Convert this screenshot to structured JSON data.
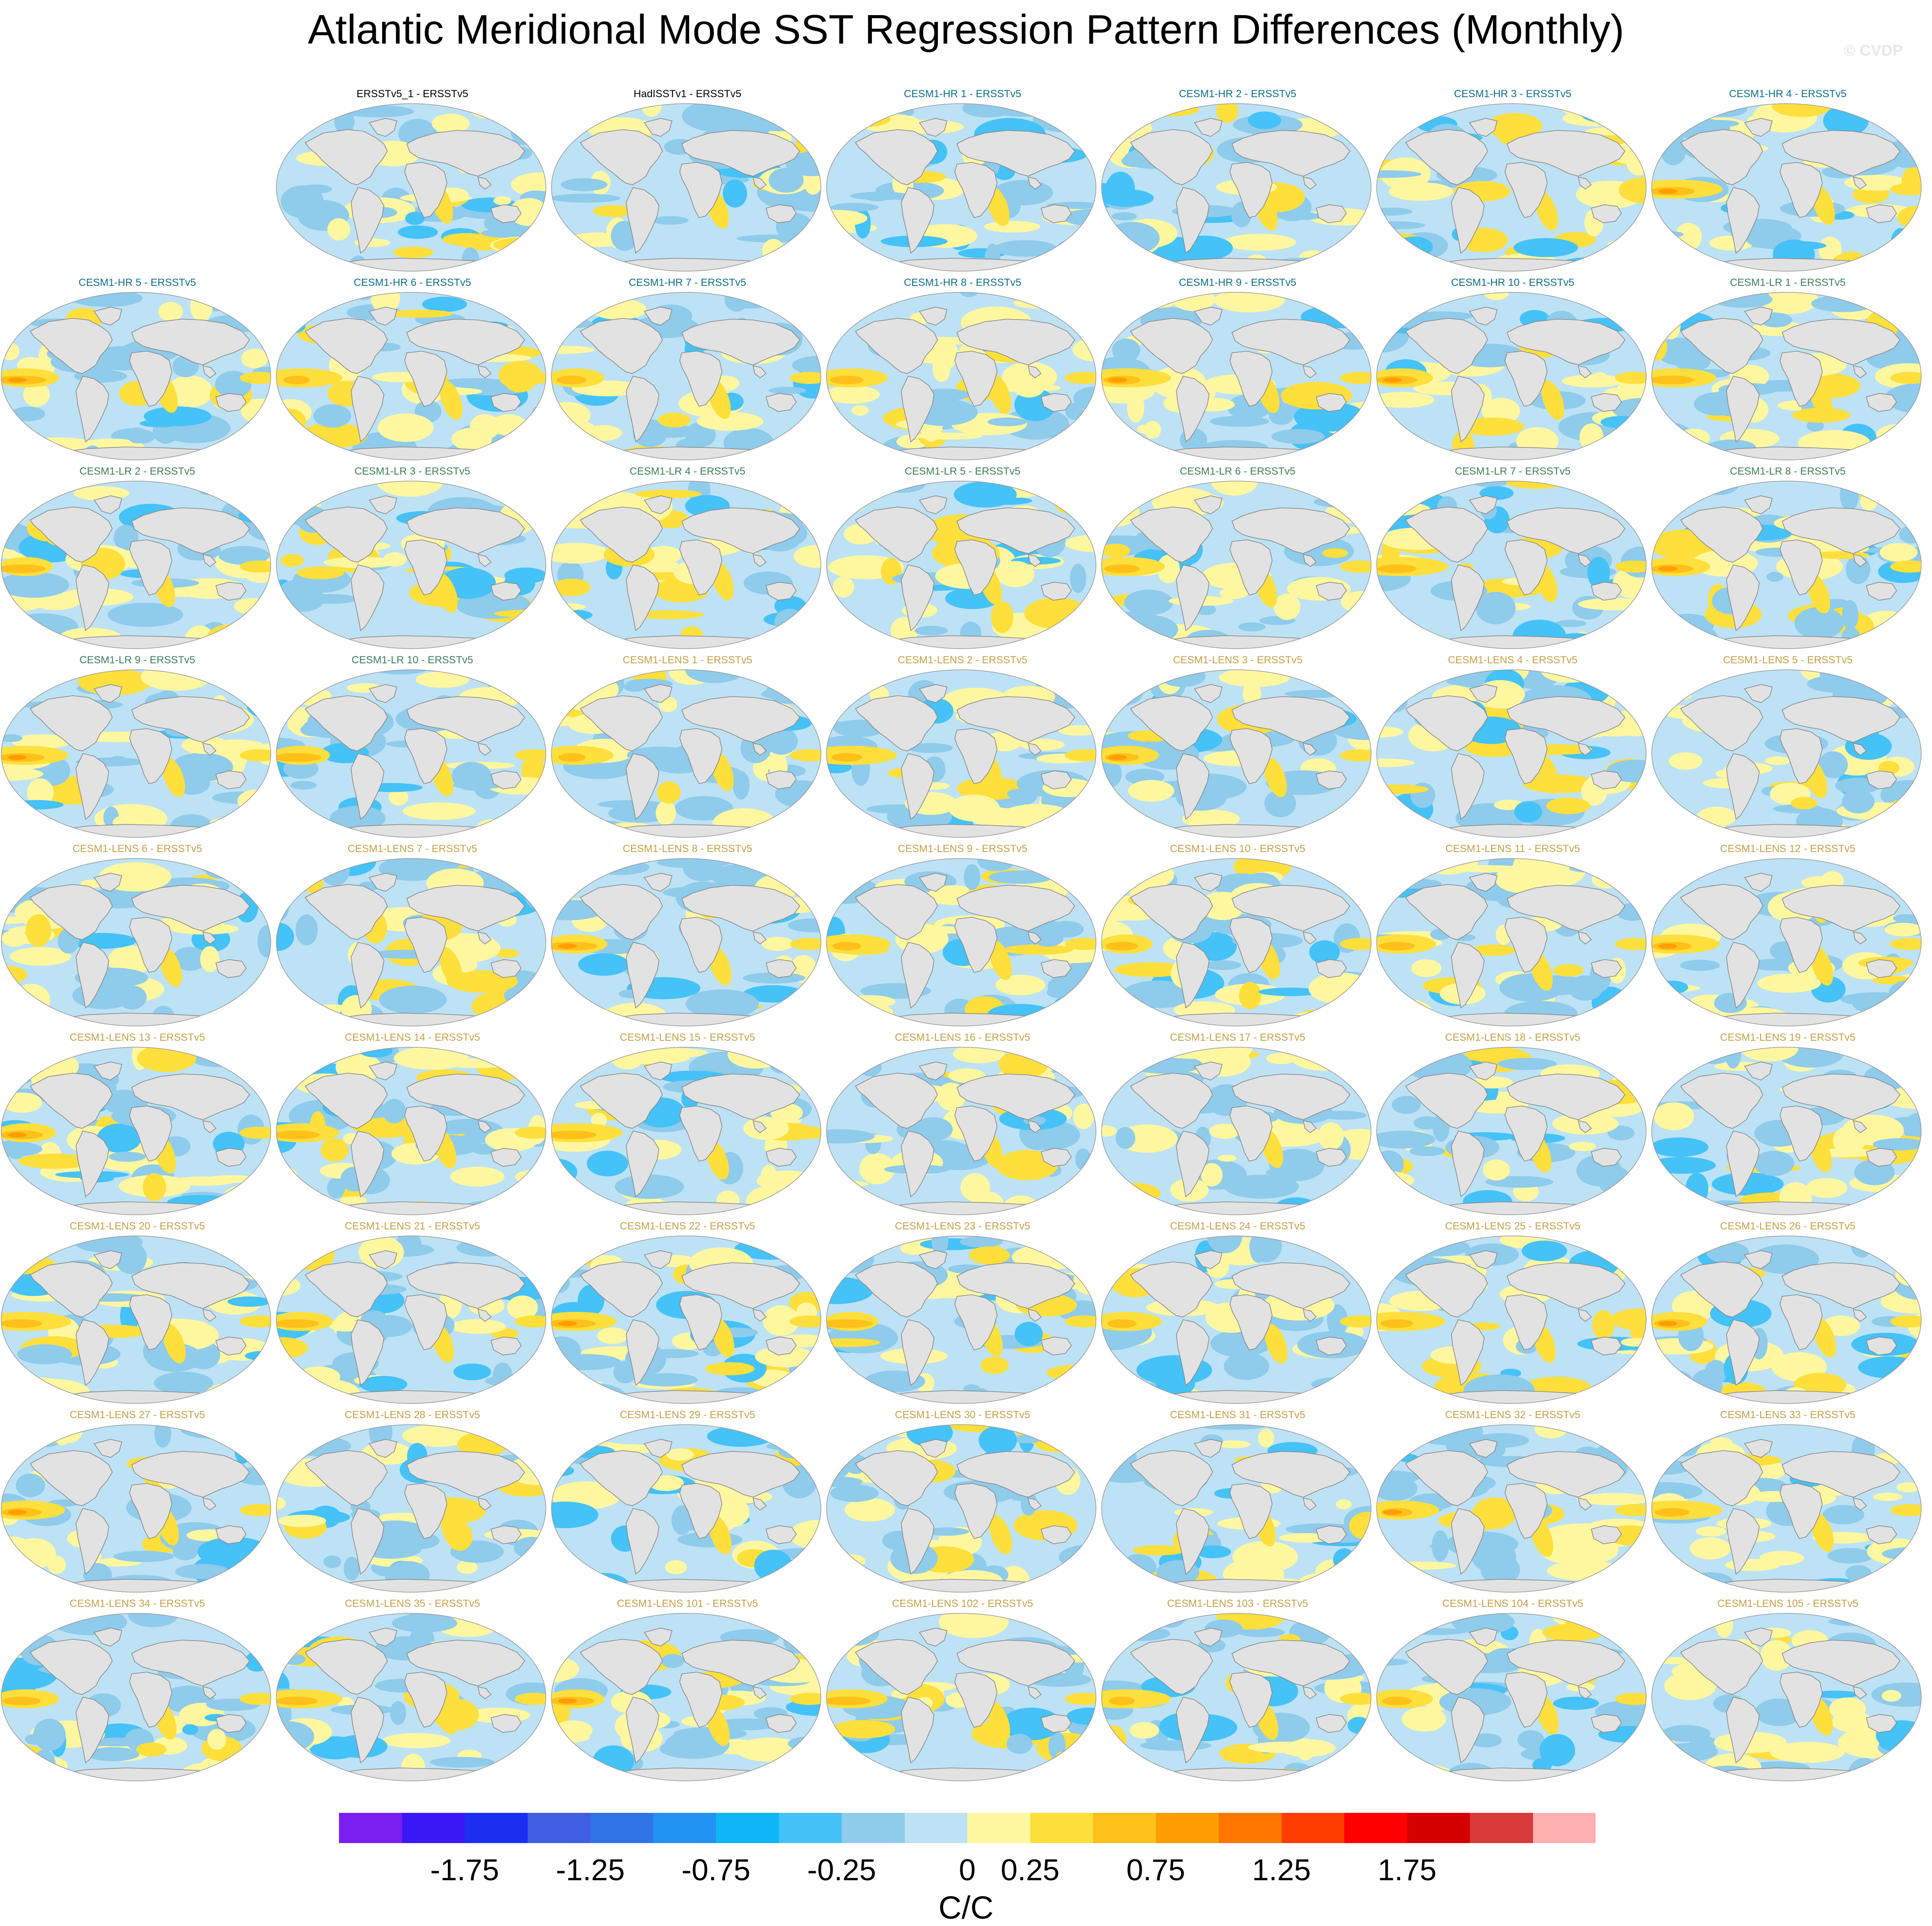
{
  "header": {
    "title": "Atlantic Meridional Mode SST Regression Pattern Differences (Monthly)",
    "watermark": "© CVDP"
  },
  "colors": {
    "obs_title": "#000000",
    "hr_title": "#0f6f8a",
    "lr_title": "#3e7f5a",
    "lens_title": "#c7a04a",
    "land": "#e2e2e2",
    "coast": "#888888"
  },
  "panels": [
    {
      "title": "ERSSTv5_1 - ERSSTv5",
      "group": "obs"
    },
    {
      "title": "HadISSTv1 - ERSSTv5",
      "group": "obs"
    },
    {
      "title": "CESM1-HR 1 - ERSSTv5",
      "group": "hr"
    },
    {
      "title": "CESM1-HR 2 - ERSSTv5",
      "group": "hr"
    },
    {
      "title": "CESM1-HR 3 - ERSSTv5",
      "group": "hr"
    },
    {
      "title": "CESM1-HR 4 - ERSSTv5",
      "group": "hr"
    },
    {
      "title": "CESM1-HR 5 - ERSSTv5",
      "group": "hr"
    },
    {
      "title": "CESM1-HR 6 - ERSSTv5",
      "group": "hr"
    },
    {
      "title": "CESM1-HR 7 - ERSSTv5",
      "group": "hr"
    },
    {
      "title": "CESM1-HR 8 - ERSSTv5",
      "group": "hr"
    },
    {
      "title": "CESM1-HR 9 - ERSSTv5",
      "group": "hr"
    },
    {
      "title": "CESM1-HR 10 - ERSSTv5",
      "group": "hr"
    },
    {
      "title": "CESM1-LR 1 - ERSSTv5",
      "group": "lr"
    },
    {
      "title": "CESM1-LR 2 - ERSSTv5",
      "group": "lr"
    },
    {
      "title": "CESM1-LR 3 - ERSSTv5",
      "group": "lr"
    },
    {
      "title": "CESM1-LR 4 - ERSSTv5",
      "group": "lr"
    },
    {
      "title": "CESM1-LR 5 - ERSSTv5",
      "group": "lr"
    },
    {
      "title": "CESM1-LR 6 - ERSSTv5",
      "group": "lr"
    },
    {
      "title": "CESM1-LR 7 - ERSSTv5",
      "group": "lr"
    },
    {
      "title": "CESM1-LR 8 - ERSSTv5",
      "group": "lr"
    },
    {
      "title": "CESM1-LR 9 - ERSSTv5",
      "group": "lr"
    },
    {
      "title": "CESM1-LR 10 - ERSSTv5",
      "group": "lr"
    },
    {
      "title": "CESM1-LENS 1 - ERSSTv5",
      "group": "lens"
    },
    {
      "title": "CESM1-LENS 2 - ERSSTv5",
      "group": "lens"
    },
    {
      "title": "CESM1-LENS 3 - ERSSTv5",
      "group": "lens"
    },
    {
      "title": "CESM1-LENS 4 - ERSSTv5",
      "group": "lens"
    },
    {
      "title": "CESM1-LENS 5 - ERSSTv5",
      "group": "lens"
    },
    {
      "title": "CESM1-LENS 6 - ERSSTv5",
      "group": "lens"
    },
    {
      "title": "CESM1-LENS 7 - ERSSTv5",
      "group": "lens"
    },
    {
      "title": "CESM1-LENS 8 - ERSSTv5",
      "group": "lens"
    },
    {
      "title": "CESM1-LENS 9 - ERSSTv5",
      "group": "lens"
    },
    {
      "title": "CESM1-LENS 10 - ERSSTv5",
      "group": "lens"
    },
    {
      "title": "CESM1-LENS 11 - ERSSTv5",
      "group": "lens"
    },
    {
      "title": "CESM1-LENS 12 - ERSSTv5",
      "group": "lens"
    },
    {
      "title": "CESM1-LENS 13 - ERSSTv5",
      "group": "lens"
    },
    {
      "title": "CESM1-LENS 14 - ERSSTv5",
      "group": "lens"
    },
    {
      "title": "CESM1-LENS 15 - ERSSTv5",
      "group": "lens"
    },
    {
      "title": "CESM1-LENS 16 - ERSSTv5",
      "group": "lens"
    },
    {
      "title": "CESM1-LENS 17 - ERSSTv5",
      "group": "lens"
    },
    {
      "title": "CESM1-LENS 18 - ERSSTv5",
      "group": "lens"
    },
    {
      "title": "CESM1-LENS 19 - ERSSTv5",
      "group": "lens"
    },
    {
      "title": "CESM1-LENS 20 - ERSSTv5",
      "group": "lens"
    },
    {
      "title": "CESM1-LENS 21 - ERSSTv5",
      "group": "lens"
    },
    {
      "title": "CESM1-LENS 22 - ERSSTv5",
      "group": "lens"
    },
    {
      "title": "CESM1-LENS 23 - ERSSTv5",
      "group": "lens"
    },
    {
      "title": "CESM1-LENS 24 - ERSSTv5",
      "group": "lens"
    },
    {
      "title": "CESM1-LENS 25 - ERSSTv5",
      "group": "lens"
    },
    {
      "title": "CESM1-LENS 26 - ERSSTv5",
      "group": "lens"
    },
    {
      "title": "CESM1-LENS 27 - ERSSTv5",
      "group": "lens"
    },
    {
      "title": "CESM1-LENS 28 - ERSSTv5",
      "group": "lens"
    },
    {
      "title": "CESM1-LENS 29 - ERSSTv5",
      "group": "lens"
    },
    {
      "title": "CESM1-LENS 30 - ERSSTv5",
      "group": "lens"
    },
    {
      "title": "CESM1-LENS 31 - ERSSTv5",
      "group": "lens"
    },
    {
      "title": "CESM1-LENS 32 - ERSSTv5",
      "group": "lens"
    },
    {
      "title": "CESM1-LENS 33 - ERSSTv5",
      "group": "lens"
    },
    {
      "title": "CESM1-LENS 34 - ERSSTv5",
      "group": "lens"
    },
    {
      "title": "CESM1-LENS 35 - ERSSTv5",
      "group": "lens"
    },
    {
      "title": "CESM1-LENS 101 - ERSSTv5",
      "group": "lens"
    },
    {
      "title": "CESM1-LENS 102 - ERSSTv5",
      "group": "lens"
    },
    {
      "title": "CESM1-LENS 103 - ERSSTv5",
      "group": "lens"
    },
    {
      "title": "CESM1-LENS 104 - ERSSTv5",
      "group": "lens"
    },
    {
      "title": "CESM1-LENS 105 - ERSSTv5",
      "group": "lens"
    }
  ],
  "colorbar": {
    "colors": [
      "#7a1ff2",
      "#3a18f5",
      "#1c2ef2",
      "#3f5ee0",
      "#3074e8",
      "#2193f5",
      "#0fb6f7",
      "#45c2f7",
      "#8fcbeb",
      "#bde2f5",
      "#fff7a0",
      "#ffdf3c",
      "#ffc01a",
      "#ff9d00",
      "#ff7700",
      "#ff3d00",
      "#ff0000",
      "#d40000",
      "#d93a3a",
      "#ffb0b0"
    ],
    "tick_labels": [
      "-1.75",
      "-1.25",
      "-0.75",
      "-0.25",
      "0",
      "0.25",
      "0.75",
      "1.25",
      "1.75"
    ],
    "tick_boundaries": [
      2,
      4,
      6,
      8,
      10,
      11,
      13,
      15,
      17
    ],
    "units": "C/C"
  }
}
